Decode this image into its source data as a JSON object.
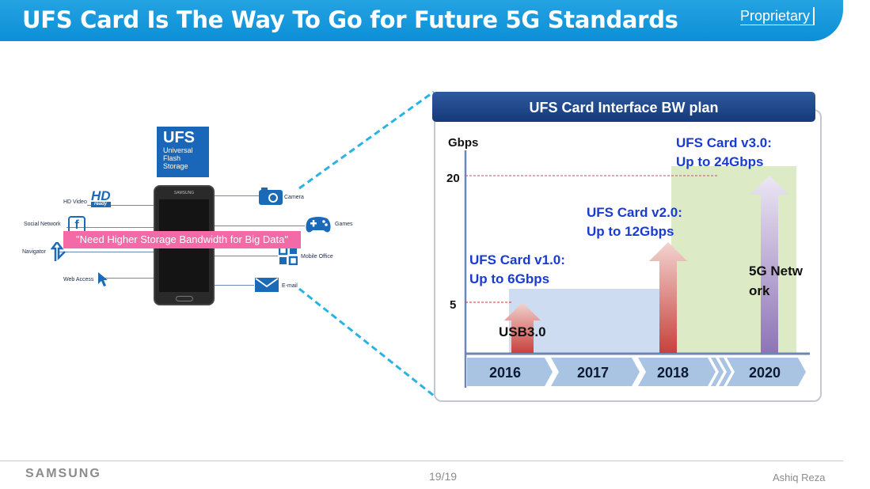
{
  "header": {
    "title": "UFS Card Is The Way To Go for Future 5G Standards",
    "proprietary": "Proprietary"
  },
  "ufs_logo": {
    "big": "UFS",
    "line1": "Universal",
    "line2": "Flash",
    "line3": "Storage"
  },
  "phone": {
    "brand": "SAMSUNG"
  },
  "left_features": [
    {
      "label": "HD Video",
      "icon": "hd-ready-icon",
      "icon_text": "HD",
      "icon_sub": "ready"
    },
    {
      "label": "Social Network",
      "icon": "facebook-icon",
      "icon_text": "f"
    },
    {
      "label": "Navigator",
      "icon": "navigator-arrow-icon"
    },
    {
      "label": "Web Access",
      "icon": "cursor-icon"
    }
  ],
  "right_features": [
    {
      "label": "Camera",
      "icon": "camera-icon"
    },
    {
      "label": "Games",
      "icon": "gamepad-icon"
    },
    {
      "label": "Mobile Office",
      "icon": "mobile-office-icon"
    },
    {
      "label": "E-mail",
      "icon": "email-icon"
    }
  ],
  "banner": "\"Need Higher Storage Bandwidth for Big Data\"",
  "panel": {
    "title": "UFS Card Interface BW plan"
  },
  "chart_data": {
    "type": "bar",
    "ylabel": "Gbps",
    "yticks": [
      5,
      20
    ],
    "categories": [
      "2016",
      "2017",
      "2018",
      "2020"
    ],
    "annotations": [
      {
        "line1": "UFS Card v1.0:",
        "line2": "Up to 6Gbps",
        "value": 6
      },
      {
        "line1": "UFS Card v2.0:",
        "line2": "Up to 12Gbps",
        "value": 12
      },
      {
        "line1": "UFS Card v3.0:",
        "line2": "Up to 24Gbps",
        "value": 24
      }
    ],
    "bar_labels": {
      "usb": "USB3.0",
      "network_line1": "5G Netw",
      "network_line2": "ork"
    },
    "colors": {
      "v1_arrow": "#d9564f",
      "v2_arrow": "#c8413d",
      "v3_arrow": "#8e74b6",
      "region1": "#c5d6ee",
      "region3": "#d8e8c0",
      "title_text": "#1a3bd0"
    }
  },
  "footer": {
    "brand": "SAMSUNG",
    "page": "19/19",
    "author": "Ashiq Reza"
  }
}
